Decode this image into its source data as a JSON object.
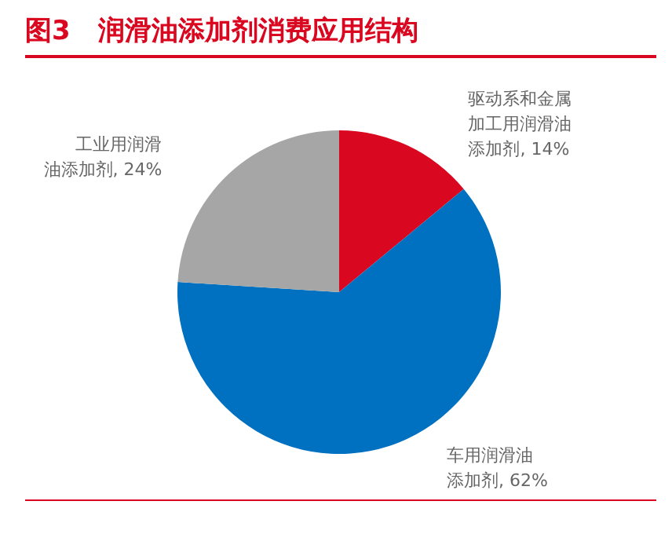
{
  "chart_data": {
    "type": "pie",
    "title": "图3   润滑油添加剂消费应用结构",
    "categories": [
      "驱动系和金属加工用润滑油添加剂",
      "车用润滑油添加剂",
      "工业用润滑油添加剂"
    ],
    "values": [
      14,
      62,
      24
    ],
    "value_labels": [
      "14%",
      "62%",
      "24%"
    ],
    "colors": [
      "#d9071f",
      "#0070c0",
      "#a6a6a6"
    ]
  }
}
